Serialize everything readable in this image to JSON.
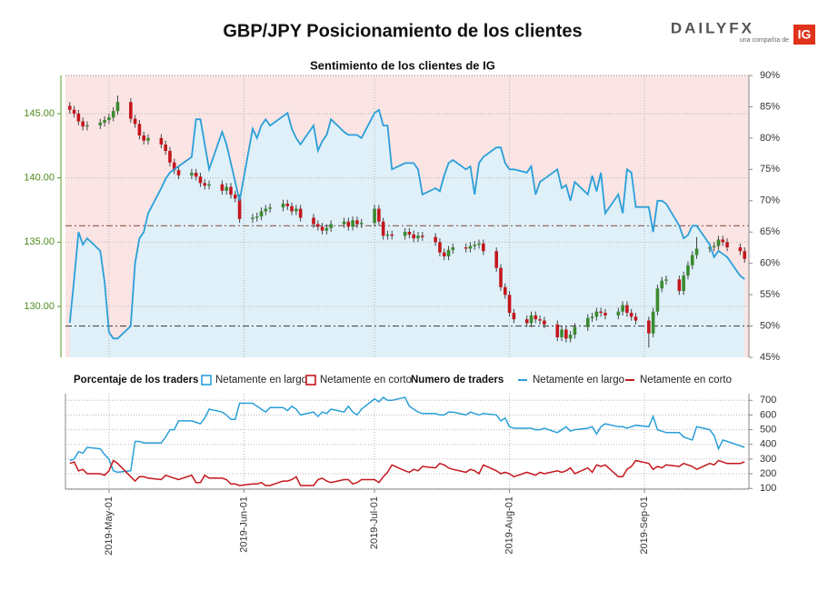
{
  "chart_data": [
    {
      "type": "candlestick",
      "title": "GBP/JPY Posicionamiento de los clientes",
      "subtitle": "Sentimiento de los clientes de IG",
      "logo": {
        "brand": "DAILYFX",
        "tagline": "una compañía de",
        "mark": "IG"
      },
      "x": [
        "2019-04-22",
        "2019-04-23",
        "2019-04-24",
        "2019-04-25",
        "2019-04-26",
        "2019-04-29",
        "2019-04-30",
        "2019-05-01",
        "2019-05-02",
        "2019-05-03",
        "2019-05-06",
        "2019-05-07",
        "2019-05-08",
        "2019-05-09",
        "2019-05-10",
        "2019-05-13",
        "2019-05-14",
        "2019-05-15",
        "2019-05-16",
        "2019-05-17",
        "2019-05-20",
        "2019-05-21",
        "2019-05-22",
        "2019-05-23",
        "2019-05-24",
        "2019-05-27",
        "2019-05-28",
        "2019-05-29",
        "2019-05-30",
        "2019-05-31",
        "2019-06-03",
        "2019-06-04",
        "2019-06-05",
        "2019-06-06",
        "2019-06-07",
        "2019-06-10",
        "2019-06-11",
        "2019-06-12",
        "2019-06-13",
        "2019-06-14",
        "2019-06-17",
        "2019-06-18",
        "2019-06-19",
        "2019-06-20",
        "2019-06-21",
        "2019-06-24",
        "2019-06-25",
        "2019-06-26",
        "2019-06-27",
        "2019-06-28",
        "2019-07-01",
        "2019-07-02",
        "2019-07-03",
        "2019-07-04",
        "2019-07-05",
        "2019-07-08",
        "2019-07-09",
        "2019-07-10",
        "2019-07-11",
        "2019-07-12",
        "2019-07-15",
        "2019-07-16",
        "2019-07-17",
        "2019-07-18",
        "2019-07-19",
        "2019-07-22",
        "2019-07-23",
        "2019-07-24",
        "2019-07-25",
        "2019-07-26",
        "2019-07-29",
        "2019-07-30",
        "2019-07-31",
        "2019-08-01",
        "2019-08-02",
        "2019-08-05",
        "2019-08-06",
        "2019-08-07",
        "2019-08-08",
        "2019-08-09",
        "2019-08-12",
        "2019-08-13",
        "2019-08-14",
        "2019-08-15",
        "2019-08-16",
        "2019-08-19",
        "2019-08-20",
        "2019-08-21",
        "2019-08-22",
        "2019-08-23",
        "2019-08-26",
        "2019-08-27",
        "2019-08-28",
        "2019-08-29",
        "2019-08-30",
        "2019-09-02",
        "2019-09-03",
        "2019-09-04",
        "2019-09-05",
        "2019-09-06",
        "2019-09-09",
        "2019-09-10",
        "2019-09-11",
        "2019-09-12",
        "2019-09-13",
        "2019-09-16",
        "2019-09-17",
        "2019-09-18",
        "2019-09-19",
        "2019-09-20",
        "2019-09-23",
        "2019-09-24"
      ],
      "open": [
        145.6,
        145.3,
        145.0,
        144.4,
        144.0,
        144.1,
        144.3,
        144.5,
        144.7,
        145.2,
        145.9,
        144.6,
        144.2,
        143.3,
        142.9,
        143.1,
        142.6,
        142.1,
        141.2,
        140.6,
        140.2,
        140.4,
        140.1,
        139.6,
        139.4,
        139.5,
        139.0,
        139.3,
        138.7,
        138.4,
        136.8,
        136.9,
        137.0,
        137.4,
        137.6,
        137.7,
        138.0,
        137.8,
        137.4,
        137.6,
        136.9,
        136.4,
        136.2,
        135.9,
        136.1,
        136.4,
        136.6,
        136.2,
        136.7,
        136.4,
        136.5,
        137.6,
        136.6,
        135.5,
        135.6,
        135.5,
        135.8,
        135.6,
        135.3,
        135.5,
        135.4,
        135.0,
        134.2,
        133.9,
        134.4,
        134.6,
        134.5,
        134.7,
        134.8,
        134.9,
        134.3,
        133.0,
        131.5,
        130.9,
        129.5,
        129.0,
        128.7,
        129.3,
        129.0,
        128.9,
        128.6,
        127.6,
        128.2,
        127.5,
        127.8,
        128.4,
        129.1,
        129.2,
        129.6,
        129.5,
        129.3,
        129.6,
        130.1,
        129.5,
        129.2,
        128.9,
        127.9,
        129.6,
        131.4,
        132.0,
        132.1,
        131.2,
        132.4,
        133.2,
        134.0,
        134.5,
        134.6,
        134.7,
        135.2,
        135.0,
        134.6,
        134.3
      ],
      "high": [
        145.9,
        145.6,
        145.3,
        144.7,
        144.4,
        144.6,
        144.8,
        145.0,
        145.5,
        146.4,
        146.2,
        144.9,
        144.5,
        143.6,
        143.4,
        143.4,
        142.9,
        142.4,
        141.5,
        140.9,
        140.7,
        140.7,
        140.4,
        139.9,
        139.8,
        139.8,
        139.6,
        139.6,
        139.0,
        138.7,
        137.2,
        137.3,
        137.7,
        137.9,
        138.0,
        138.3,
        138.3,
        138.1,
        137.9,
        137.9,
        137.2,
        136.7,
        136.5,
        136.4,
        136.7,
        136.9,
        136.9,
        137.0,
        137.0,
        136.8,
        137.9,
        137.9,
        136.9,
        135.9,
        135.9,
        136.1,
        136.1,
        135.9,
        135.8,
        135.8,
        135.7,
        135.3,
        134.5,
        134.7,
        134.9,
        134.9,
        135.0,
        135.1,
        135.2,
        135.2,
        134.6,
        133.3,
        131.8,
        131.2,
        129.8,
        129.3,
        129.6,
        129.6,
        129.3,
        129.2,
        128.9,
        128.5,
        128.5,
        128.1,
        128.7,
        129.4,
        129.5,
        129.9,
        129.9,
        129.8,
        129.9,
        130.4,
        130.4,
        129.8,
        129.5,
        129.2,
        129.9,
        131.7,
        132.3,
        132.4,
        132.4,
        132.7,
        133.5,
        134.3,
        135.4,
        134.9,
        135.0,
        135.5,
        135.5,
        135.3,
        134.9,
        134.6
      ],
      "low": [
        145.0,
        144.7,
        144.1,
        143.7,
        143.7,
        143.8,
        144.0,
        144.2,
        144.4,
        144.9,
        144.3,
        143.9,
        143.0,
        142.6,
        142.6,
        142.3,
        141.8,
        140.9,
        140.3,
        139.9,
        139.9,
        139.8,
        139.3,
        139.1,
        139.1,
        138.7,
        138.7,
        138.4,
        138.1,
        136.5,
        136.5,
        136.6,
        136.7,
        137.1,
        137.3,
        137.4,
        137.5,
        137.1,
        137.1,
        136.6,
        136.1,
        135.9,
        135.6,
        135.6,
        135.8,
        136.1,
        135.9,
        135.9,
        136.1,
        136.1,
        136.2,
        136.3,
        135.2,
        135.2,
        135.2,
        135.2,
        135.3,
        135.0,
        135.0,
        135.1,
        134.7,
        133.9,
        133.6,
        133.6,
        134.1,
        134.2,
        134.2,
        134.4,
        134.5,
        134.0,
        132.7,
        131.2,
        130.6,
        129.2,
        128.7,
        128.4,
        128.4,
        128.7,
        128.6,
        128.3,
        127.3,
        127.3,
        127.2,
        127.2,
        127.5,
        128.1,
        128.8,
        128.9,
        129.2,
        129.0,
        129.0,
        129.3,
        129.2,
        128.9,
        128.6,
        126.8,
        127.6,
        129.3,
        131.1,
        131.7,
        130.9,
        130.9,
        132.1,
        132.9,
        133.7,
        134.2,
        134.3,
        134.4,
        134.7,
        134.3,
        134.0,
        133.4
      ],
      "close": [
        145.3,
        145.0,
        144.4,
        144.0,
        144.1,
        144.3,
        144.5,
        144.7,
        145.2,
        145.9,
        144.6,
        144.2,
        143.3,
        142.9,
        143.1,
        142.6,
        142.1,
        141.2,
        140.6,
        140.2,
        140.4,
        140.1,
        139.6,
        139.4,
        139.5,
        139.0,
        139.3,
        138.7,
        138.4,
        136.8,
        136.9,
        137.0,
        137.4,
        137.6,
        137.7,
        138.0,
        137.8,
        137.4,
        137.6,
        136.9,
        136.4,
        136.2,
        135.9,
        136.1,
        136.4,
        136.6,
        136.2,
        136.7,
        136.4,
        136.5,
        137.6,
        136.6,
        135.5,
        135.6,
        135.5,
        135.8,
        135.6,
        135.3,
        135.5,
        135.4,
        135.0,
        134.2,
        133.9,
        134.4,
        134.6,
        134.5,
        134.7,
        134.8,
        134.9,
        134.3,
        133.0,
        131.5,
        130.9,
        129.5,
        129.0,
        128.7,
        129.3,
        129.0,
        128.9,
        128.6,
        127.6,
        128.2,
        127.5,
        127.8,
        128.4,
        129.1,
        129.2,
        129.6,
        129.5,
        129.3,
        129.6,
        130.1,
        129.5,
        129.2,
        128.9,
        127.9,
        129.6,
        131.4,
        132.0,
        132.1,
        131.2,
        132.4,
        133.2,
        134.0,
        134.5,
        134.6,
        134.7,
        135.2,
        135.0,
        134.6,
        134.3,
        133.7
      ],
      "up_color": "#3a8a2e",
      "down_color": "#c4161c",
      "legend_title": "Porcentaje de los traders",
      "series": [
        {
          "name": "Netamente en largo",
          "color": "#2a9fd8",
          "fill": "#dff0f9",
          "axis": "y2",
          "values": [
            50.5,
            57.5,
            65,
            63,
            64,
            62,
            57,
            49,
            48,
            48,
            50,
            60,
            64,
            65,
            68,
            72,
            73.5,
            74.5,
            75,
            75.5,
            77,
            83,
            83,
            79,
            75,
            81,
            79,
            76,
            73,
            70,
            81.5,
            80,
            82,
            83,
            82,
            83.5,
            84,
            81.5,
            80,
            79,
            82,
            78,
            79.5,
            80.5,
            83,
            81,
            80.5,
            80.5,
            80.5,
            80,
            84,
            84.5,
            82,
            82,
            75,
            76,
            76,
            76,
            75,
            71,
            72,
            71.5,
            74,
            76,
            76.5,
            75,
            75.5,
            71,
            76,
            77,
            78.5,
            78.5,
            76,
            75,
            75,
            74.5,
            75.5,
            71,
            73,
            73.5,
            75,
            72,
            72.5,
            70,
            73,
            71,
            74,
            71.5,
            74.5,
            68,
            71,
            68,
            75,
            74.5,
            69,
            69,
            65,
            70,
            70,
            69.5,
            66,
            64,
            64.5,
            66,
            66,
            63,
            61,
            62,
            61.5,
            61,
            58,
            57.5
          ]
        }
      ],
      "short_area": {
        "name": "Netamente en corto",
        "color": "#c4161c",
        "fill": "#fbe4e4"
      },
      "hlines": [
        {
          "value": 50,
          "color": "#4a4a4a"
        },
        {
          "value": 66,
          "color": "#8c5a4c"
        }
      ],
      "xlim": [
        "2019-04-21",
        "2019-09-25"
      ],
      "xticks": [
        {
          "value": "2019-05-01",
          "label": "2019-May-01"
        },
        {
          "value": "2019-06-01",
          "label": "2019-Jun-01"
        },
        {
          "value": "2019-07-01",
          "label": "2019-Jul-01"
        },
        {
          "value": "2019-08-01",
          "label": "2019-Aug-01"
        },
        {
          "value": "2019-09-01",
          "label": "2019-Sep-01"
        }
      ],
      "ylim": [
        126.04,
        147.97
      ],
      "yticks": [
        {
          "value": 130,
          "label": "130.00"
        },
        {
          "value": 135,
          "label": "135.00"
        },
        {
          "value": 140,
          "label": "140.00"
        },
        {
          "value": 145,
          "label": "145.00"
        }
      ],
      "y2lim": [
        45,
        90
      ],
      "y2ticks": [
        {
          "value": 45,
          "label": "45%"
        },
        {
          "value": 50,
          "label": "50%"
        },
        {
          "value": 55,
          "label": "55%"
        },
        {
          "value": 60,
          "label": "60%"
        },
        {
          "value": 65,
          "label": "65%"
        },
        {
          "value": 70,
          "label": "70%"
        },
        {
          "value": 75,
          "label": "75%"
        },
        {
          "value": 80,
          "label": "80%"
        },
        {
          "value": 85,
          "label": "85%"
        },
        {
          "value": 90,
          "label": "90%"
        }
      ],
      "grid": true
    },
    {
      "type": "line",
      "legend_title": "Numero de traders",
      "series": [
        {
          "name": "Netamente en largo",
          "color": "#2a9fd8",
          "values": [
            290,
            300,
            350,
            340,
            380,
            370,
            330,
            300,
            220,
            210,
            220,
            420,
            420,
            410,
            410,
            410,
            450,
            500,
            500,
            560,
            560,
            550,
            540,
            580,
            640,
            620,
            600,
            570,
            570,
            680,
            680,
            660,
            640,
            620,
            650,
            650,
            630,
            660,
            640,
            600,
            620,
            590,
            620,
            610,
            640,
            620,
            660,
            620,
            600,
            640,
            710,
            690,
            720,
            700,
            700,
            720,
            660,
            640,
            620,
            610,
            610,
            600,
            600,
            620,
            620,
            600,
            620,
            610,
            600,
            610,
            600,
            560,
            580,
            520,
            510,
            510,
            510,
            500,
            500,
            510,
            480,
            500,
            520,
            490,
            500,
            510,
            520,
            470,
            520,
            540,
            520,
            520,
            510,
            520,
            530,
            520,
            590,
            500,
            490,
            480,
            480,
            450,
            440,
            430,
            520,
            500,
            460,
            370,
            430,
            420,
            390,
            380
          ]
        },
        {
          "name": "Netamente en corto",
          "color": "#c4161c",
          "values": [
            270,
            280,
            220,
            230,
            200,
            200,
            190,
            220,
            290,
            270,
            180,
            150,
            180,
            180,
            170,
            160,
            190,
            180,
            170,
            160,
            190,
            140,
            140,
            190,
            170,
            170,
            160,
            130,
            130,
            120,
            130,
            130,
            140,
            120,
            120,
            150,
            150,
            160,
            180,
            120,
            120,
            160,
            170,
            150,
            140,
            160,
            160,
            130,
            140,
            160,
            160,
            140,
            180,
            210,
            260,
            220,
            210,
            230,
            220,
            250,
            240,
            270,
            260,
            240,
            230,
            210,
            230,
            220,
            200,
            260,
            220,
            200,
            210,
            200,
            180,
            210,
            200,
            190,
            210,
            200,
            220,
            210,
            220,
            240,
            200,
            240,
            210,
            260,
            250,
            260,
            180,
            180,
            230,
            250,
            290,
            270,
            230,
            250,
            240,
            260,
            250,
            270,
            260,
            250,
            230,
            270,
            260,
            290,
            280,
            270,
            270,
            280
          ]
        }
      ],
      "ylim": [
        95,
        745
      ],
      "yticks": [
        100,
        200,
        300,
        400,
        500,
        600,
        700
      ],
      "grid": true
    }
  ]
}
